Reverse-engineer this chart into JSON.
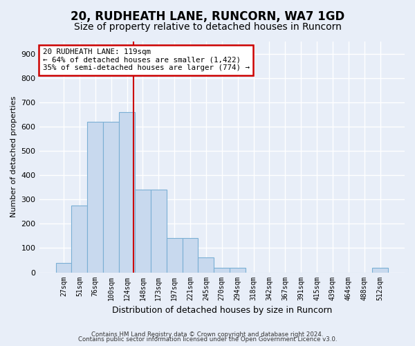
{
  "title1": "20, RUDHEATH LANE, RUNCORN, WA7 1GD",
  "title2": "Size of property relative to detached houses in Runcorn",
  "xlabel": "Distribution of detached houses by size in Runcorn",
  "ylabel": "Number of detached properties",
  "footer1": "Contains HM Land Registry data © Crown copyright and database right 2024.",
  "footer2": "Contains public sector information licensed under the Open Government Licence v3.0.",
  "bar_labels": [
    "27sqm",
    "51sqm",
    "76sqm",
    "100sqm",
    "124sqm",
    "148sqm",
    "173sqm",
    "197sqm",
    "221sqm",
    "245sqm",
    "270sqm",
    "294sqm",
    "318sqm",
    "342sqm",
    "367sqm",
    "391sqm",
    "415sqm",
    "439sqm",
    "464sqm",
    "488sqm",
    "512sqm"
  ],
  "bar_values": [
    40,
    275,
    620,
    620,
    660,
    340,
    340,
    140,
    140,
    60,
    20,
    20,
    0,
    0,
    0,
    0,
    0,
    0,
    0,
    0,
    20
  ],
  "bar_color": "#c8d9ee",
  "bar_edgecolor": "#7aafd4",
  "vline_color": "#cc0000",
  "vline_pos": 4.42,
  "annotation_text": "20 RUDHEATH LANE: 119sqm\n← 64% of detached houses are smaller (1,422)\n35% of semi-detached houses are larger (774) →",
  "annotation_box_facecolor": "#ffffff",
  "annotation_box_edgecolor": "#cc0000",
  "ylim": [
    0,
    950
  ],
  "yticks": [
    0,
    100,
    200,
    300,
    400,
    500,
    600,
    700,
    800,
    900
  ],
  "bg_color": "#e8eef8",
  "plot_bg_color": "#e8eef8",
  "grid_color": "#ffffff",
  "title1_fontsize": 12,
  "title2_fontsize": 10,
  "bar_width": 1.0
}
